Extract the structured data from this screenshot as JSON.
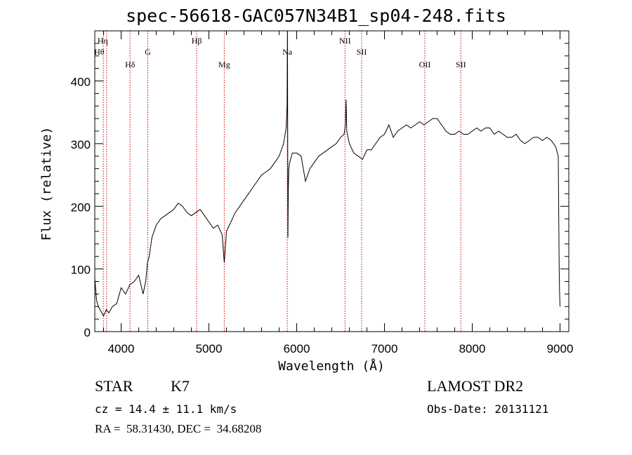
{
  "title": "spec-56618-GAC057N34B1_sp04-248.fits",
  "info": {
    "class": "STAR",
    "subclass": "K7",
    "survey": "LAMOST DR2",
    "cz": "cz = 14.4 ± 11.1 km/s",
    "obs_date": "Obs-Date: 20131121",
    "coords": "RA =  58.31430, DEC =  34.68208"
  },
  "chart_data": {
    "type": "line",
    "title": "spec-56618-GAC057N34B1_sp04-248.fits",
    "xlabel": "Wavelength (Å)",
    "ylabel": "Flux (relative)",
    "xlim": [
      3700,
      9100
    ],
    "ylim": [
      0,
      480
    ],
    "xticks": [
      4000,
      5000,
      6000,
      7000,
      8000,
      9000
    ],
    "yticks": [
      0,
      100,
      200,
      300,
      400
    ],
    "grid": false,
    "line_color": "#000000",
    "marker_color": "#cc0000",
    "lines": [
      {
        "name": "Hη",
        "wavelength": 3835
      },
      {
        "name": "Hθ",
        "wavelength": 3797
      },
      {
        "name": "Hδ",
        "wavelength": 4102
      },
      {
        "name": "G",
        "wavelength": 4304
      },
      {
        "name": "Hβ",
        "wavelength": 4861
      },
      {
        "name": "Mg",
        "wavelength": 5175
      },
      {
        "name": "Na",
        "wavelength": 5893
      },
      {
        "name": "NII",
        "wavelength": 6550
      },
      {
        "name": "SII",
        "wavelength": 6740
      },
      {
        "name": "OII",
        "wavelength": 7460
      },
      {
        "name": "SII",
        "wavelength": 7870
      }
    ],
    "series": [
      {
        "x": [
          3700,
          3720,
          3740,
          3760,
          3780,
          3800,
          3830,
          3860,
          3900,
          3950,
          4000,
          4050,
          4100,
          4150,
          4200,
          4250,
          4280,
          4300,
          4320,
          4350,
          4400,
          4450,
          4500,
          4550,
          4600,
          4650,
          4700,
          4750,
          4800,
          4850,
          4900,
          4950,
          5000,
          5050,
          5100,
          5150,
          5175,
          5200,
          5250,
          5300,
          5350,
          5400,
          5450,
          5500,
          5550,
          5600,
          5650,
          5700,
          5750,
          5800,
          5850,
          5880,
          5890,
          5895,
          5900,
          5905,
          5910,
          5920,
          5950,
          6000,
          6050,
          6100,
          6150,
          6200,
          6250,
          6300,
          6350,
          6400,
          6450,
          6500,
          6540,
          6555,
          6562,
          6570,
          6600,
          6650,
          6700,
          6750,
          6800,
          6850,
          6900,
          6950,
          7000,
          7050,
          7100,
          7150,
          7200,
          7250,
          7300,
          7350,
          7400,
          7450,
          7500,
          7550,
          7600,
          7650,
          7700,
          7750,
          7800,
          7850,
          7900,
          7950,
          8000,
          8050,
          8100,
          8150,
          8200,
          8250,
          8300,
          8350,
          8400,
          8450,
          8500,
          8550,
          8600,
          8650,
          8700,
          8750,
          8800,
          8850,
          8900,
          8950,
          8980,
          8990,
          8995,
          9000
        ],
        "y": [
          85,
          50,
          40,
          35,
          30,
          25,
          35,
          30,
          40,
          45,
          70,
          60,
          75,
          80,
          90,
          60,
          80,
          110,
          120,
          150,
          170,
          180,
          185,
          190,
          195,
          205,
          200,
          190,
          185,
          190,
          195,
          185,
          175,
          165,
          170,
          155,
          110,
          160,
          175,
          190,
          200,
          210,
          220,
          230,
          240,
          250,
          255,
          260,
          270,
          280,
          300,
          325,
          360,
          480,
          150,
          230,
          260,
          270,
          285,
          285,
          280,
          240,
          260,
          270,
          280,
          285,
          290,
          295,
          300,
          310,
          315,
          330,
          370,
          320,
          300,
          285,
          280,
          275,
          290,
          290,
          300,
          310,
          315,
          330,
          310,
          320,
          325,
          330,
          325,
          330,
          335,
          330,
          335,
          340,
          340,
          330,
          320,
          315,
          315,
          320,
          315,
          315,
          320,
          325,
          320,
          325,
          325,
          315,
          320,
          315,
          310,
          310,
          315,
          305,
          300,
          305,
          310,
          310,
          305,
          310,
          305,
          295,
          280,
          100,
          60,
          40
        ]
      }
    ]
  }
}
